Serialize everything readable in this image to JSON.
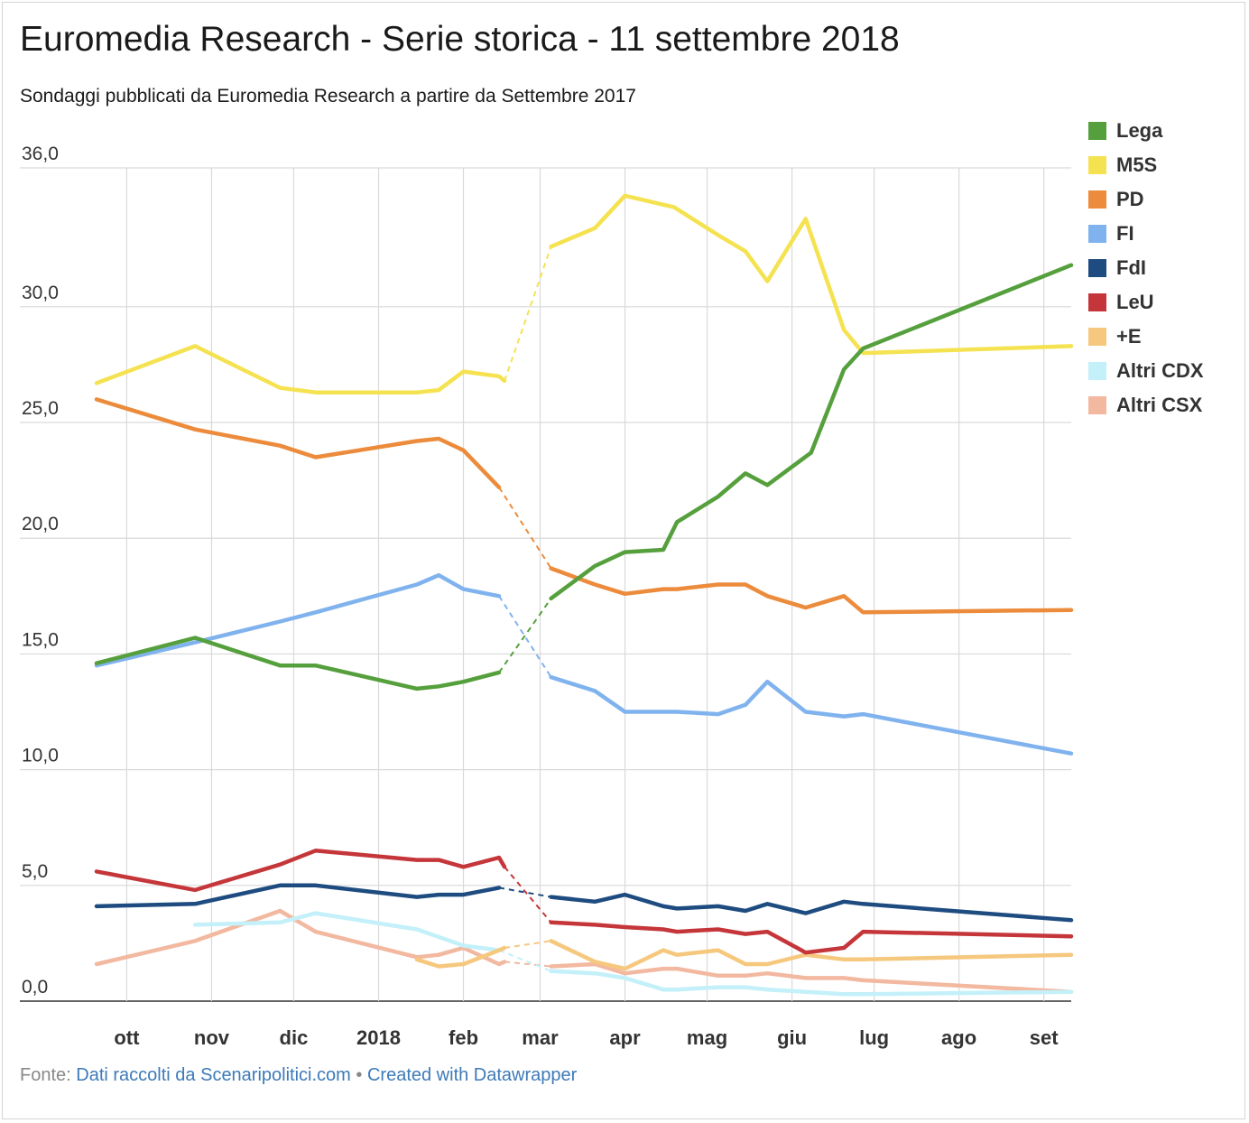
{
  "title": "Euromedia Research - Serie storica - 11 settembre 2018",
  "subtitle": "Sondaggi pubblicati da Euromedia Research a partire da Settembre 2017",
  "footer": {
    "prefix": "Fonte:",
    "source": "Dati raccolti da Scenaripolitici.com",
    "separator": "•",
    "credit": "Created with Datawrapper"
  },
  "chart_data": {
    "type": "line",
    "title": "Euromedia Research - Serie storica - 11 settembre 2018",
    "subtitle": "Sondaggi pubblicati da Euromedia Research a partire da Settembre 2017",
    "xlabel": "",
    "ylabel": "",
    "x_axis": {
      "type": "date",
      "range": [
        "2017-09-19",
        "2018-09-11"
      ],
      "ticks": [
        {
          "date": "2017-10-01",
          "label": "ott"
        },
        {
          "date": "2017-11-01",
          "label": "nov"
        },
        {
          "date": "2017-12-01",
          "label": "dic"
        },
        {
          "date": "2018-01-01",
          "label": "2018"
        },
        {
          "date": "2018-02-01",
          "label": "feb"
        },
        {
          "date": "2018-03-01",
          "label": "mar"
        },
        {
          "date": "2018-04-01",
          "label": "apr"
        },
        {
          "date": "2018-05-01",
          "label": "mag"
        },
        {
          "date": "2018-06-01",
          "label": "giu"
        },
        {
          "date": "2018-07-01",
          "label": "lug"
        },
        {
          "date": "2018-08-01",
          "label": "ago"
        },
        {
          "date": "2018-09-01",
          "label": "set"
        }
      ]
    },
    "y_axis": {
      "range": [
        0,
        36
      ],
      "ticks": [
        {
          "value": 0,
          "label": "0,0"
        },
        {
          "value": 5,
          "label": "5,0"
        },
        {
          "value": 10,
          "label": "10,0"
        },
        {
          "value": 15,
          "label": "15,0"
        },
        {
          "value": 20,
          "label": "20,0"
        },
        {
          "value": 25,
          "label": "25,0"
        },
        {
          "value": 30,
          "label": "30,0"
        },
        {
          "value": 36,
          "label": "36,0"
        }
      ]
    },
    "grid": true,
    "legend": "right",
    "gap": {
      "from": "2018-02-16",
      "to": "2018-03-05",
      "style": "dashed"
    },
    "series": [
      {
        "name": "Lega",
        "color": "#55a03c",
        "points": [
          [
            "2017-09-20",
            14.6
          ],
          [
            "2017-10-26",
            15.7
          ],
          [
            "2017-11-26",
            14.5
          ],
          [
            "2017-12-09",
            14.5
          ],
          [
            "2018-01-15",
            13.5
          ],
          [
            "2018-01-23",
            13.6
          ],
          [
            "2018-02-01",
            13.8
          ],
          [
            "2018-02-14",
            14.2
          ],
          [
            "2018-03-05",
            17.4
          ],
          [
            "2018-03-21",
            18.8
          ],
          [
            "2018-04-01",
            19.4
          ],
          [
            "2018-04-15",
            19.5
          ],
          [
            "2018-04-20",
            20.7
          ],
          [
            "2018-05-05",
            21.8
          ],
          [
            "2018-05-15",
            22.8
          ],
          [
            "2018-05-23",
            22.3
          ],
          [
            "2018-06-08",
            23.7
          ],
          [
            "2018-06-20",
            27.3
          ],
          [
            "2018-06-27",
            28.2
          ],
          [
            "2018-09-11",
            31.8
          ]
        ]
      },
      {
        "name": "M5S",
        "color": "#f5e251",
        "points": [
          [
            "2017-09-20",
            26.7
          ],
          [
            "2017-10-26",
            28.3
          ],
          [
            "2017-11-26",
            26.5
          ],
          [
            "2017-12-09",
            26.3
          ],
          [
            "2018-01-15",
            26.3
          ],
          [
            "2018-01-23",
            26.4
          ],
          [
            "2018-02-01",
            27.2
          ],
          [
            "2018-02-14",
            27.0
          ],
          [
            "2018-02-16",
            26.8
          ],
          [
            "2018-03-05",
            32.6
          ],
          [
            "2018-03-21",
            33.4
          ],
          [
            "2018-04-01",
            34.8
          ],
          [
            "2018-04-19",
            34.3
          ],
          [
            "2018-05-05",
            33.1
          ],
          [
            "2018-05-15",
            32.4
          ],
          [
            "2018-05-23",
            31.1
          ],
          [
            "2018-06-06",
            33.8
          ],
          [
            "2018-06-20",
            29.0
          ],
          [
            "2018-06-27",
            28.0
          ],
          [
            "2018-09-11",
            28.3
          ]
        ]
      },
      {
        "name": "PD",
        "color": "#ec8b3b",
        "points": [
          [
            "2017-09-20",
            26.0
          ],
          [
            "2017-10-26",
            24.7
          ],
          [
            "2017-11-26",
            24.0
          ],
          [
            "2017-12-09",
            23.5
          ],
          [
            "2018-01-15",
            24.2
          ],
          [
            "2018-01-23",
            24.3
          ],
          [
            "2018-02-01",
            23.8
          ],
          [
            "2018-02-14",
            22.2
          ],
          [
            "2018-03-05",
            18.7
          ],
          [
            "2018-03-21",
            18.0
          ],
          [
            "2018-04-01",
            17.6
          ],
          [
            "2018-04-15",
            17.8
          ],
          [
            "2018-04-20",
            17.8
          ],
          [
            "2018-05-05",
            18.0
          ],
          [
            "2018-05-15",
            18.0
          ],
          [
            "2018-05-23",
            17.5
          ],
          [
            "2018-06-06",
            17.0
          ],
          [
            "2018-06-20",
            17.5
          ],
          [
            "2018-06-27",
            16.8
          ],
          [
            "2018-09-11",
            16.9
          ]
        ]
      },
      {
        "name": "FI",
        "color": "#80b3ee",
        "points": [
          [
            "2017-09-20",
            14.5
          ],
          [
            "2017-10-26",
            15.5
          ],
          [
            "2017-11-26",
            16.4
          ],
          [
            "2017-12-09",
            16.8
          ],
          [
            "2018-01-15",
            18.0
          ],
          [
            "2018-01-23",
            18.4
          ],
          [
            "2018-02-01",
            17.8
          ],
          [
            "2018-02-14",
            17.5
          ],
          [
            "2018-03-05",
            14.0
          ],
          [
            "2018-03-21",
            13.4
          ],
          [
            "2018-04-01",
            12.5
          ],
          [
            "2018-04-15",
            12.5
          ],
          [
            "2018-04-20",
            12.5
          ],
          [
            "2018-05-05",
            12.4
          ],
          [
            "2018-05-15",
            12.8
          ],
          [
            "2018-05-23",
            13.8
          ],
          [
            "2018-06-06",
            12.5
          ],
          [
            "2018-06-20",
            12.3
          ],
          [
            "2018-06-27",
            12.4
          ],
          [
            "2018-09-11",
            10.7
          ]
        ]
      },
      {
        "name": "FdI",
        "color": "#1e4c80",
        "points": [
          [
            "2017-09-20",
            4.1
          ],
          [
            "2017-10-26",
            4.2
          ],
          [
            "2017-11-26",
            5.0
          ],
          [
            "2017-12-09",
            5.0
          ],
          [
            "2018-01-15",
            4.5
          ],
          [
            "2018-01-23",
            4.6
          ],
          [
            "2018-02-01",
            4.6
          ],
          [
            "2018-02-14",
            4.9
          ],
          [
            "2018-03-05",
            4.5
          ],
          [
            "2018-03-21",
            4.3
          ],
          [
            "2018-04-01",
            4.6
          ],
          [
            "2018-04-15",
            4.1
          ],
          [
            "2018-04-20",
            4.0
          ],
          [
            "2018-05-05",
            4.1
          ],
          [
            "2018-05-15",
            3.9
          ],
          [
            "2018-05-23",
            4.2
          ],
          [
            "2018-06-06",
            3.8
          ],
          [
            "2018-06-20",
            4.3
          ],
          [
            "2018-06-27",
            4.2
          ],
          [
            "2018-09-11",
            3.5
          ]
        ]
      },
      {
        "name": "LeU",
        "color": "#c5363a",
        "points": [
          [
            "2017-09-20",
            5.6
          ],
          [
            "2017-10-26",
            4.8
          ],
          [
            "2017-11-26",
            5.9
          ],
          [
            "2017-12-09",
            6.5
          ],
          [
            "2018-01-15",
            6.1
          ],
          [
            "2018-01-23",
            6.1
          ],
          [
            "2018-02-01",
            5.8
          ],
          [
            "2018-02-14",
            6.2
          ],
          [
            "2018-02-16",
            5.8
          ],
          [
            "2018-03-05",
            3.4
          ],
          [
            "2018-03-21",
            3.3
          ],
          [
            "2018-04-01",
            3.2
          ],
          [
            "2018-04-15",
            3.1
          ],
          [
            "2018-04-20",
            3.0
          ],
          [
            "2018-05-05",
            3.1
          ],
          [
            "2018-05-15",
            2.9
          ],
          [
            "2018-05-23",
            3.0
          ],
          [
            "2018-06-06",
            2.1
          ],
          [
            "2018-06-20",
            2.3
          ],
          [
            "2018-06-27",
            3.0
          ],
          [
            "2018-09-11",
            2.8
          ]
        ]
      },
      {
        "name": "+E",
        "color": "#f6c87e",
        "points": [
          [
            "2018-01-15",
            1.8
          ],
          [
            "2018-01-23",
            1.5
          ],
          [
            "2018-02-01",
            1.6
          ],
          [
            "2018-02-14",
            2.2
          ],
          [
            "2018-02-16",
            2.3
          ],
          [
            "2018-03-05",
            2.6
          ],
          [
            "2018-03-21",
            1.7
          ],
          [
            "2018-04-01",
            1.4
          ],
          [
            "2018-04-15",
            2.2
          ],
          [
            "2018-04-20",
            2.0
          ],
          [
            "2018-05-05",
            2.2
          ],
          [
            "2018-05-15",
            1.6
          ],
          [
            "2018-05-23",
            1.6
          ],
          [
            "2018-06-06",
            2.0
          ],
          [
            "2018-06-20",
            1.8
          ],
          [
            "2018-06-27",
            1.8
          ],
          [
            "2018-09-11",
            2.0
          ]
        ]
      },
      {
        "name": "Altri CDX",
        "color": "#c3f0f9",
        "points": [
          [
            "2017-10-26",
            3.3
          ],
          [
            "2017-11-26",
            3.4
          ],
          [
            "2017-12-09",
            3.8
          ],
          [
            "2018-01-15",
            3.1
          ],
          [
            "2018-02-01",
            2.4
          ],
          [
            "2018-02-14",
            2.2
          ],
          [
            "2018-03-05",
            1.3
          ],
          [
            "2018-03-21",
            1.2
          ],
          [
            "2018-04-01",
            1.0
          ],
          [
            "2018-04-15",
            0.5
          ],
          [
            "2018-04-20",
            0.5
          ],
          [
            "2018-05-05",
            0.6
          ],
          [
            "2018-05-15",
            0.6
          ],
          [
            "2018-05-23",
            0.5
          ],
          [
            "2018-06-06",
            0.4
          ],
          [
            "2018-06-20",
            0.3
          ],
          [
            "2018-06-27",
            0.3
          ],
          [
            "2018-09-11",
            0.4
          ]
        ]
      },
      {
        "name": "Altri CSX",
        "color": "#f2b8a0",
        "points": [
          [
            "2017-09-20",
            1.6
          ],
          [
            "2017-10-26",
            2.6
          ],
          [
            "2017-11-26",
            3.9
          ],
          [
            "2017-12-09",
            3.0
          ],
          [
            "2018-01-15",
            1.9
          ],
          [
            "2018-01-23",
            2.0
          ],
          [
            "2018-02-01",
            2.3
          ],
          [
            "2018-02-14",
            1.6
          ],
          [
            "2018-02-16",
            1.7
          ],
          [
            "2018-03-05",
            1.5
          ],
          [
            "2018-03-21",
            1.6
          ],
          [
            "2018-04-01",
            1.2
          ],
          [
            "2018-04-15",
            1.4
          ],
          [
            "2018-04-20",
            1.4
          ],
          [
            "2018-05-05",
            1.1
          ],
          [
            "2018-05-15",
            1.1
          ],
          [
            "2018-05-23",
            1.2
          ],
          [
            "2018-06-06",
            1.0
          ],
          [
            "2018-06-20",
            1.0
          ],
          [
            "2018-06-27",
            0.9
          ],
          [
            "2018-09-11",
            0.4
          ]
        ]
      }
    ]
  }
}
